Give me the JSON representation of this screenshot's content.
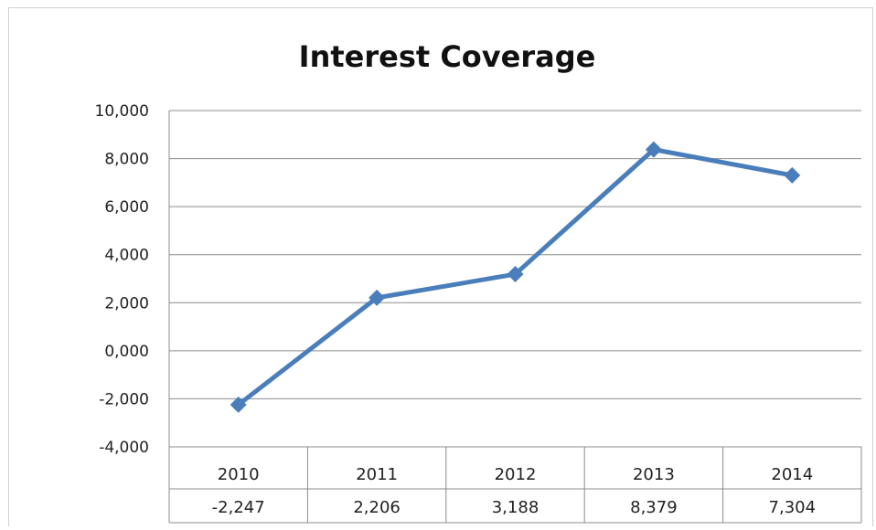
{
  "chart_data": {
    "type": "line",
    "title": "Interest Coverage",
    "xlabel": "",
    "ylabel": "",
    "categories": [
      "2010",
      "2011",
      "2012",
      "2013",
      "2014"
    ],
    "series": [
      {
        "values": [
          -2247,
          2206,
          3188,
          8379,
          7304
        ],
        "value_labels": [
          "-2,247",
          "2,206",
          "3,188",
          "8,379",
          "7,304"
        ]
      }
    ],
    "ylim": [
      -4000,
      10000
    ],
    "yticks": [
      10000,
      8000,
      6000,
      4000,
      2000,
      0,
      -2000,
      -4000
    ],
    "ytick_labels": [
      "10,000",
      "8,000",
      "6,000",
      "4,000",
      "2,000",
      "0,000",
      "-2,000",
      "-4,000"
    ],
    "grid": true,
    "legend": "none",
    "data_table": true,
    "line_color": "#4a7ebb",
    "grid_color": "#8c8c8c"
  }
}
